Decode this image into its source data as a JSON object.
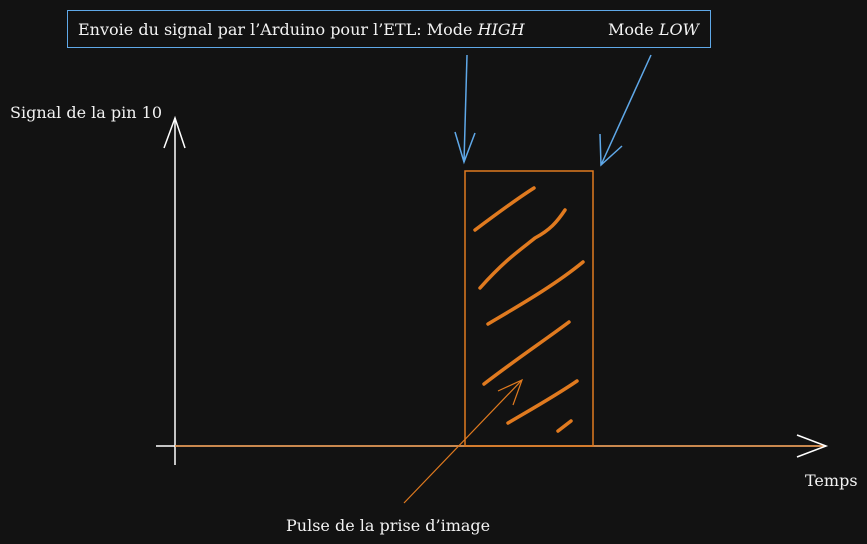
{
  "caption": {
    "prefix": "Envoie du signal par l’Arduino pour l’ETL: Mode ",
    "high_mode": "HIGH",
    "low_prefix": "Mode ",
    "low_mode": "LOW"
  },
  "axes": {
    "y_label": "Signal de la pin 10",
    "x_label": "Temps"
  },
  "annotation": {
    "pulse_label": "Pulse de la prise d’image"
  },
  "colors": {
    "background": "#121212",
    "axis": "#ffffff",
    "pulse": "#e07a1f",
    "arrow": "#5fa8e8"
  }
}
